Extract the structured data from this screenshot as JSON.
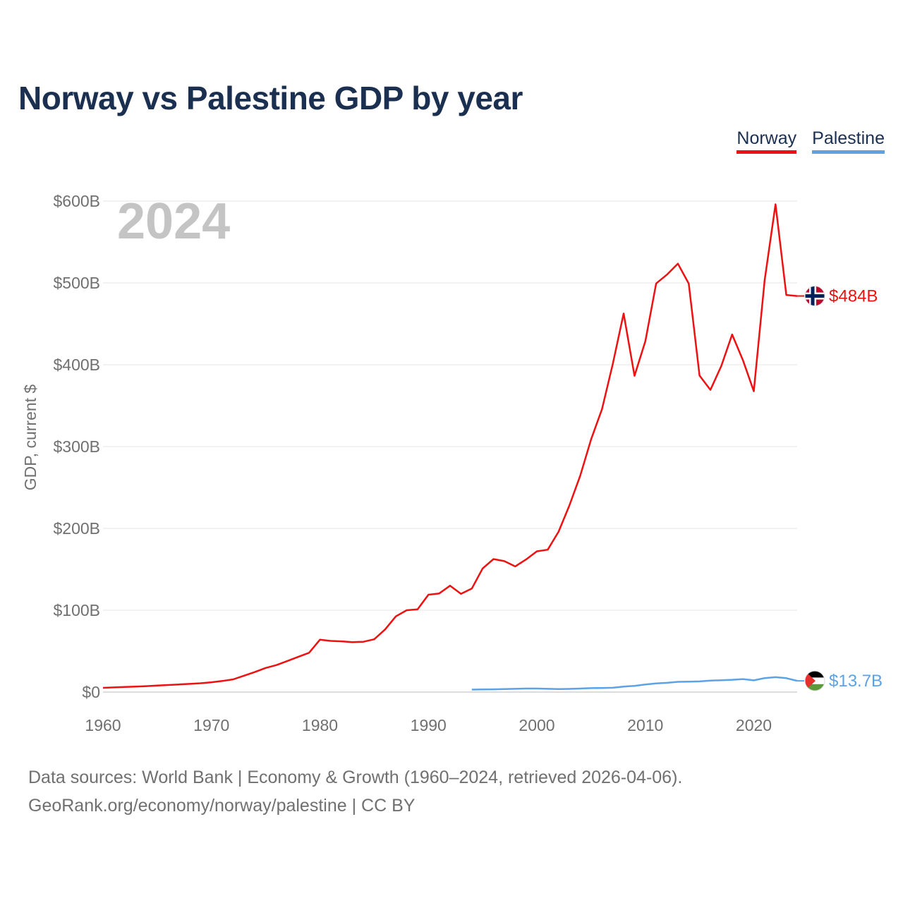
{
  "title": "Norway vs Palestine GDP by year",
  "legend": [
    {
      "name": "Norway",
      "color": "#ee1111"
    },
    {
      "name": "Palestine",
      "color": "#5ba3e6"
    }
  ],
  "chart_data": {
    "type": "line",
    "title": "Norway vs Palestine GDP by year",
    "xlabel": "",
    "ylabel": "GDP, current $",
    "year_label": "2024",
    "xlim": [
      1960,
      2024
    ],
    "ylim": [
      0,
      600
    ],
    "y_unit": "billions USD",
    "x_ticks": [
      1960,
      1970,
      1980,
      1990,
      2000,
      2010,
      2020
    ],
    "x_tick_labels": [
      "1960",
      "1970",
      "1980",
      "1990",
      "2000",
      "2010",
      "2020"
    ],
    "y_ticks": [
      0,
      100,
      200,
      300,
      400,
      500,
      600
    ],
    "y_tick_labels": [
      "$0",
      "$100B",
      "$200B",
      "$300B",
      "$400B",
      "$500B",
      "$600B"
    ],
    "grid": true,
    "legend_position": "top-right",
    "series": [
      {
        "name": "Norway",
        "color": "#ee1111",
        "end_label": "$484B",
        "x": [
          1960,
          1961,
          1962,
          1963,
          1964,
          1965,
          1966,
          1967,
          1968,
          1969,
          1970,
          1971,
          1972,
          1973,
          1974,
          1975,
          1976,
          1977,
          1978,
          1979,
          1980,
          1981,
          1982,
          1983,
          1984,
          1985,
          1986,
          1987,
          1988,
          1989,
          1990,
          1991,
          1992,
          1993,
          1994,
          1995,
          1996,
          1997,
          1998,
          1999,
          2000,
          2001,
          2002,
          2003,
          2004,
          2005,
          2006,
          2007,
          2008,
          2009,
          2010,
          2011,
          2012,
          2013,
          2014,
          2015,
          2016,
          2017,
          2018,
          2019,
          2020,
          2021,
          2022,
          2023,
          2024
        ],
        "values": [
          5.2,
          5.7,
          6.2,
          6.6,
          7.2,
          8.0,
          8.6,
          9.3,
          10.0,
          10.8,
          12.0,
          13.5,
          15.5,
          20.0,
          24.5,
          29.5,
          33.0,
          38.0,
          43.0,
          48.0,
          64.0,
          62.5,
          62.0,
          61.0,
          61.5,
          64.5,
          76.5,
          92.5,
          100.0,
          101.0,
          119.0,
          120.5,
          130.0,
          120.0,
          126.5,
          151.0,
          162.5,
          160.0,
          153.5,
          162.0,
          172.0,
          174.0,
          196.0,
          228.0,
          264.5,
          308.9,
          345.6,
          400.9,
          462.6,
          386.5,
          428.8,
          499.3,
          510.2,
          523.5,
          499.1,
          386.7,
          369.3,
          398.4,
          437.0,
          405.5,
          367.6,
          503.4,
          596.0,
          485.3,
          484.0
        ]
      },
      {
        "name": "Palestine",
        "color": "#5ba3e6",
        "end_label": "$13.7B",
        "x": [
          1994,
          1995,
          1996,
          1997,
          1998,
          1999,
          2000,
          2001,
          2002,
          2003,
          2004,
          2005,
          2006,
          2007,
          2008,
          2009,
          2010,
          2011,
          2012,
          2013,
          2014,
          2015,
          2016,
          2017,
          2018,
          2019,
          2020,
          2021,
          2022,
          2023,
          2024
        ],
        "values": [
          3.0,
          3.3,
          3.4,
          3.7,
          4.0,
          4.3,
          4.3,
          4.0,
          3.6,
          3.9,
          4.3,
          4.8,
          5.0,
          5.3,
          6.7,
          7.6,
          9.3,
          10.5,
          11.3,
          12.5,
          12.7,
          13.0,
          14.0,
          14.5,
          15.0,
          15.9,
          14.3,
          17.1,
          18.2,
          17.0,
          13.7
        ]
      }
    ]
  },
  "footer": {
    "line1": "Data sources: World Bank | Economy & Growth (1960–2024, retrieved 2026-04-06).",
    "line2": "GeoRank.org/economy/norway/palestine | CC BY"
  }
}
